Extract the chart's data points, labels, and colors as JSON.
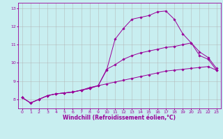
{
  "xlabel": "Windchill (Refroidissement éolien,°C)",
  "bg_color": "#c8eef0",
  "line_color": "#990099",
  "grid_color": "#b0b0b0",
  "xlim": [
    -0.5,
    23.5
  ],
  "ylim": [
    7.5,
    13.3
  ],
  "xticks": [
    0,
    1,
    2,
    3,
    4,
    5,
    6,
    7,
    8,
    9,
    10,
    11,
    12,
    13,
    14,
    15,
    16,
    17,
    18,
    19,
    20,
    21,
    22,
    23
  ],
  "yticks": [
    8,
    9,
    10,
    11,
    12,
    13
  ],
  "curve1_x": [
    0,
    1,
    2,
    3,
    4,
    5,
    6,
    7,
    8,
    9,
    10,
    11,
    12,
    13,
    14,
    15,
    16,
    17,
    18,
    19,
    20,
    21,
    22,
    23
  ],
  "curve1_y": [
    8.1,
    7.8,
    8.0,
    8.2,
    8.3,
    8.35,
    8.4,
    8.5,
    8.6,
    8.75,
    9.6,
    11.3,
    11.9,
    12.4,
    12.5,
    12.6,
    12.8,
    12.85,
    12.4,
    11.6,
    11.1,
    10.4,
    10.2,
    9.6
  ],
  "curve2_x": [
    0,
    1,
    2,
    3,
    4,
    5,
    6,
    7,
    8,
    9,
    10,
    11,
    12,
    13,
    14,
    15,
    16,
    17,
    18,
    19,
    20,
    21,
    22,
    23
  ],
  "curve2_y": [
    8.1,
    7.8,
    8.0,
    8.2,
    8.3,
    8.35,
    8.4,
    8.5,
    8.65,
    8.75,
    9.65,
    9.9,
    10.2,
    10.4,
    10.55,
    10.65,
    10.75,
    10.85,
    10.9,
    11.0,
    11.1,
    10.6,
    10.3,
    9.7
  ],
  "curve3_x": [
    0,
    1,
    2,
    3,
    4,
    5,
    6,
    7,
    8,
    9,
    10,
    11,
    12,
    13,
    14,
    15,
    16,
    17,
    18,
    19,
    20,
    21,
    22,
    23
  ],
  "curve3_y": [
    8.1,
    7.8,
    8.0,
    8.2,
    8.3,
    8.35,
    8.4,
    8.5,
    8.6,
    8.75,
    8.85,
    8.95,
    9.05,
    9.15,
    9.25,
    9.35,
    9.45,
    9.55,
    9.6,
    9.65,
    9.7,
    9.75,
    9.8,
    9.6
  ],
  "xlabel_fontsize": 5.5,
  "tick_fontsize": 4.5,
  "linewidth": 0.7,
  "markersize": 1.8
}
